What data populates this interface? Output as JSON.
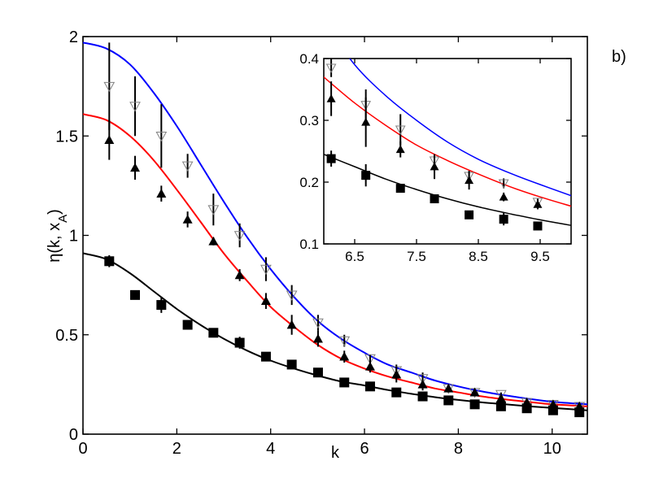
{
  "panel_label": "b)",
  "chart_data": [
    {
      "type": "scatter",
      "role": "main",
      "title": "",
      "xlabel": "k",
      "ylabel": "η(k, x_A)",
      "ylabel_parts": {
        "main": "η(k, x",
        "sub": "A",
        "close": ")"
      },
      "xlim": [
        0,
        10.75
      ],
      "ylim": [
        0,
        2
      ],
      "xticks": [
        0,
        2,
        4,
        6,
        8,
        10
      ],
      "yticks": [
        0,
        0.5,
        1,
        1.5,
        2
      ],
      "xtick_labels": [
        "0",
        "2",
        "4",
        "6",
        "8",
        "10"
      ],
      "ytick_labels": [
        "0",
        "0.5",
        "1",
        "1.5",
        "2"
      ],
      "grid": false,
      "legend": null,
      "x": [
        0.56,
        1.11,
        1.67,
        2.23,
        2.78,
        3.34,
        3.9,
        4.45,
        5.01,
        5.57,
        6.12,
        6.68,
        7.24,
        7.79,
        8.35,
        8.91,
        9.46,
        10.02,
        10.58
      ],
      "series": [
        {
          "name": "open down-triangles",
          "marker": "triangle-down-open",
          "color": "#808080",
          "values": [
            1.75,
            1.65,
            1.5,
            1.35,
            1.13,
            1.0,
            0.83,
            0.7,
            0.56,
            0.47,
            0.38,
            0.32,
            0.28,
            0.23,
            0.21,
            0.2,
            0.16,
            0.15,
            0.14
          ],
          "errors": [
            0.22,
            0.15,
            0.16,
            0.06,
            0.08,
            0.06,
            0.06,
            0.05,
            0.04,
            0.03,
            0.02,
            0.03,
            0.03,
            0.01,
            0.01,
            0.01,
            0.01,
            0.01,
            0.01
          ]
        },
        {
          "name": "filled up-triangles",
          "marker": "triangle-up-filled",
          "color": "#000000",
          "values": [
            1.48,
            1.34,
            1.21,
            1.08,
            0.97,
            0.8,
            0.67,
            0.55,
            0.48,
            0.39,
            0.34,
            0.3,
            0.25,
            0.23,
            0.21,
            0.18,
            0.16,
            0.15,
            0.14
          ],
          "errors": [
            0.1,
            0.06,
            0.04,
            0.04,
            0.02,
            0.03,
            0.04,
            0.05,
            0.04,
            0.03,
            0.03,
            0.04,
            0.03,
            0.02,
            0.02,
            0.01,
            0.01,
            0.01,
            0.01
          ]
        },
        {
          "name": "filled squares",
          "marker": "square-filled",
          "color": "#000000",
          "values": [
            0.87,
            0.7,
            0.65,
            0.55,
            0.51,
            0.46,
            0.39,
            0.35,
            0.31,
            0.26,
            0.24,
            0.21,
            0.19,
            0.17,
            0.15,
            0.14,
            0.13,
            0.12,
            0.11
          ],
          "errors": [
            0.03,
            0.0,
            0.04,
            0.02,
            0.0,
            0.03,
            0.02,
            0.0,
            0.01,
            0.0,
            0.01,
            0.02,
            0.01,
            0.0,
            0.0,
            0.01,
            0.0,
            0.0,
            0.0
          ]
        }
      ],
      "curves": [
        {
          "name": "blue theory",
          "color": "#0000ff",
          "eta0": 1.97,
          "x_shape": [
            0,
            0.5,
            1,
            1.5,
            2,
            2.5,
            3,
            3.5,
            4,
            4.5,
            5,
            5.5,
            6,
            6.5,
            7,
            7.5,
            8,
            8.5,
            9,
            9.5,
            10,
            10.75
          ],
          "values": [
            1.97,
            1.94,
            1.86,
            1.72,
            1.55,
            1.36,
            1.17,
            0.99,
            0.83,
            0.69,
            0.57,
            0.48,
            0.41,
            0.35,
            0.31,
            0.27,
            0.24,
            0.215,
            0.195,
            0.178,
            0.163,
            0.15
          ]
        },
        {
          "name": "red theory",
          "color": "#ff0000",
          "eta0": 1.61,
          "x_shape": [
            0,
            0.5,
            1,
            1.5,
            2,
            2.5,
            3,
            3.5,
            4,
            4.5,
            5,
            5.5,
            6,
            6.5,
            7,
            7.5,
            8,
            8.5,
            9,
            9.5,
            10,
            10.75
          ],
          "values": [
            1.61,
            1.58,
            1.5,
            1.38,
            1.23,
            1.07,
            0.91,
            0.77,
            0.64,
            0.54,
            0.45,
            0.38,
            0.33,
            0.29,
            0.26,
            0.23,
            0.21,
            0.19,
            0.175,
            0.162,
            0.15,
            0.14
          ]
        },
        {
          "name": "black theory",
          "color": "#000000",
          "eta0": 0.91,
          "x_shape": [
            0,
            0.5,
            1,
            1.5,
            2,
            2.5,
            3,
            3.5,
            4,
            4.5,
            5,
            5.5,
            6,
            6.5,
            7,
            7.5,
            8,
            8.5,
            9,
            9.5,
            10,
            10.75
          ],
          "values": [
            0.91,
            0.88,
            0.81,
            0.72,
            0.63,
            0.55,
            0.48,
            0.42,
            0.37,
            0.33,
            0.295,
            0.265,
            0.245,
            0.222,
            0.203,
            0.186,
            0.172,
            0.16,
            0.15,
            0.14,
            0.132,
            0.12
          ]
        }
      ]
    },
    {
      "type": "scatter",
      "role": "inset",
      "title": "",
      "xlabel": "",
      "ylabel": "",
      "xlim": [
        6.0,
        10.0
      ],
      "ylim": [
        0.1,
        0.4
      ],
      "xticks": [
        6.5,
        7.5,
        8.5,
        9.5
      ],
      "yticks": [
        0.1,
        0.2,
        0.3,
        0.4
      ],
      "xtick_labels": [
        "6.5",
        "7.5",
        "8.5",
        "9.5"
      ],
      "ytick_labels": [
        "0.1",
        "0.2",
        "0.3",
        "0.4"
      ],
      "grid": false,
      "x": [
        6.12,
        6.68,
        7.24,
        7.79,
        8.35,
        8.91,
        9.46
      ],
      "series": [
        {
          "name": "open down-triangles",
          "marker": "triangle-down-open",
          "color": "#808080",
          "values": [
            0.385,
            0.325,
            0.285,
            0.235,
            0.21,
            0.198,
            0.168
          ],
          "errors": [
            0.015,
            0.025,
            0.025,
            0.01,
            0.008,
            0.008,
            0.005
          ]
        },
        {
          "name": "filled up-triangles",
          "marker": "triangle-up-filled",
          "color": "#000000",
          "values": [
            0.335,
            0.297,
            0.253,
            0.225,
            0.203,
            0.176,
            0.164
          ],
          "errors": [
            0.028,
            0.04,
            0.013,
            0.02,
            0.015,
            0.007,
            0.008
          ]
        },
        {
          "name": "filled squares",
          "marker": "square-filled",
          "color": "#000000",
          "values": [
            0.238,
            0.211,
            0.19,
            0.173,
            0.147,
            0.14,
            0.129
          ],
          "errors": [
            0.013,
            0.018,
            0.007,
            0.0,
            0.0,
            0.01,
            0.0
          ]
        }
      ],
      "curves": [
        {
          "name": "blue theory",
          "color": "#0000ff",
          "x_shape": [
            6.0,
            6.5,
            7.0,
            7.5,
            8.0,
            8.5,
            9.0,
            9.5,
            10.0
          ],
          "values": [
            0.46,
            0.39,
            0.34,
            0.3,
            0.265,
            0.237,
            0.215,
            0.196,
            0.178
          ]
        },
        {
          "name": "red theory",
          "color": "#ff0000",
          "x_shape": [
            6.0,
            6.5,
            7.0,
            7.5,
            8.0,
            8.5,
            9.0,
            9.5,
            10.0
          ],
          "values": [
            0.37,
            0.328,
            0.292,
            0.26,
            0.235,
            0.213,
            0.193,
            0.176,
            0.161
          ]
        },
        {
          "name": "black theory",
          "color": "#000000",
          "x_shape": [
            6.0,
            6.5,
            7.0,
            7.5,
            8.0,
            8.5,
            9.0,
            9.5,
            10.0
          ],
          "values": [
            0.245,
            0.225,
            0.205,
            0.188,
            0.173,
            0.16,
            0.149,
            0.139,
            0.13
          ]
        }
      ]
    }
  ]
}
